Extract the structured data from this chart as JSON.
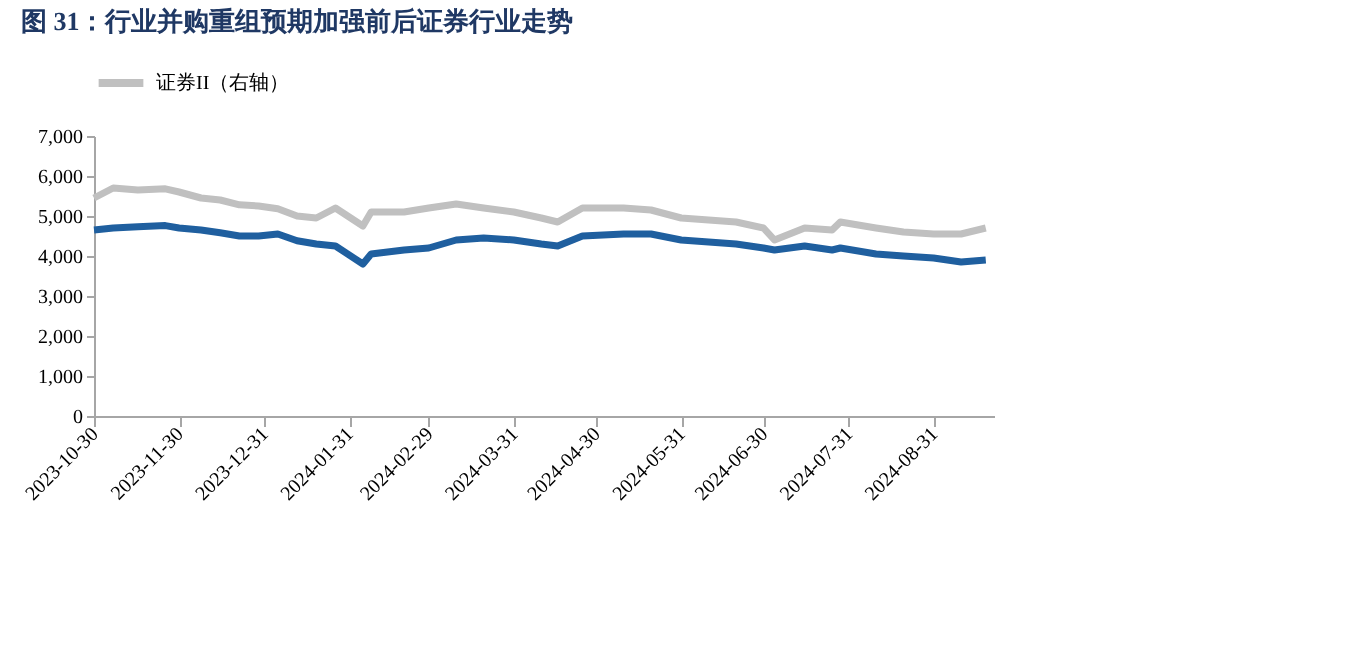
{
  "chart_data": {
    "type": "line",
    "title": "图 31：行业并购重组预期加强前后证券行业走势",
    "x": [
      "2023-10-30",
      "2023-11-06",
      "2023-11-15",
      "2023-11-25",
      "2023-11-30",
      "2023-12-08",
      "2023-12-15",
      "2023-12-22",
      "2023-12-29",
      "2024-01-05",
      "2024-01-12",
      "2024-01-19",
      "2024-01-26",
      "2024-02-05",
      "2024-02-08",
      "2024-02-20",
      "2024-02-29",
      "2024-03-10",
      "2024-03-20",
      "2024-03-31",
      "2024-04-10",
      "2024-04-16",
      "2024-04-25",
      "2024-05-10",
      "2024-05-20",
      "2024-05-31",
      "2024-06-10",
      "2024-06-20",
      "2024-06-30",
      "2024-07-04",
      "2024-07-15",
      "2024-07-25",
      "2024-07-28",
      "2024-08-10",
      "2024-08-20",
      "2024-08-31",
      "2024-09-10",
      "2024-09-19"
    ],
    "series": [
      {
        "color": "#1f5f9f",
        "values": [
          4650,
          4700,
          4730,
          4760,
          4700,
          4650,
          4580,
          4500,
          4500,
          4550,
          4380,
          4300,
          4250,
          3800,
          4050,
          4150,
          4200,
          4400,
          4450,
          4400,
          4300,
          4250,
          4500,
          4550,
          4550,
          4400,
          4350,
          4300,
          4200,
          4150,
          4250,
          4150,
          4200,
          4050,
          4000,
          3950,
          3850,
          3900
        ]
      },
      {
        "name": "证券II（右轴）",
        "color": "#c0c0c0",
        "values": [
          5450,
          5700,
          5650,
          5680,
          5600,
          5450,
          5400,
          5280,
          5250,
          5180,
          5000,
          4950,
          5200,
          4750,
          5100,
          5100,
          5200,
          5300,
          5200,
          5100,
          4950,
          4850,
          5200,
          5200,
          5150,
          4950,
          4900,
          4850,
          4700,
          4400,
          4700,
          4650,
          4850,
          4700,
          4600,
          4550,
          4550,
          4700
        ]
      }
    ],
    "xlim": [
      "2023-10-30",
      "2024-09-22"
    ],
    "xticks": [
      {
        "value": "2023-10-30",
        "label": "2023-10-30"
      },
      {
        "value": "2023-11-30",
        "label": "2023-11-30"
      },
      {
        "value": "2023-12-31",
        "label": "2023-12-31"
      },
      {
        "value": "2024-01-31",
        "label": "2024-01-31"
      },
      {
        "value": "2024-02-29",
        "label": "2024-02-29"
      },
      {
        "value": "2024-03-31",
        "label": "2024-03-31"
      },
      {
        "value": "2024-04-30",
        "label": "2024-04-30"
      },
      {
        "value": "2024-05-31",
        "label": "2024-05-31"
      },
      {
        "value": "2024-06-30",
        "label": "2024-06-30"
      },
      {
        "value": "2024-07-31",
        "label": "2024-07-31"
      },
      {
        "value": "2024-08-31",
        "label": "2024-08-31"
      }
    ],
    "ylim": [
      0,
      7000
    ],
    "yticks": [
      {
        "value": 0,
        "label": "0"
      },
      {
        "value": 1000,
        "label": "1,000"
      },
      {
        "value": 2000,
        "label": "2,000"
      },
      {
        "value": 3000,
        "label": "3,000"
      },
      {
        "value": 4000,
        "label": "4,000"
      },
      {
        "value": 5000,
        "label": "5,000"
      },
      {
        "value": 6000,
        "label": "6,000"
      },
      {
        "value": 7000,
        "label": "7,000"
      }
    ],
    "grid": false,
    "legend": "top",
    "marker": "none",
    "line_style": "solid"
  }
}
